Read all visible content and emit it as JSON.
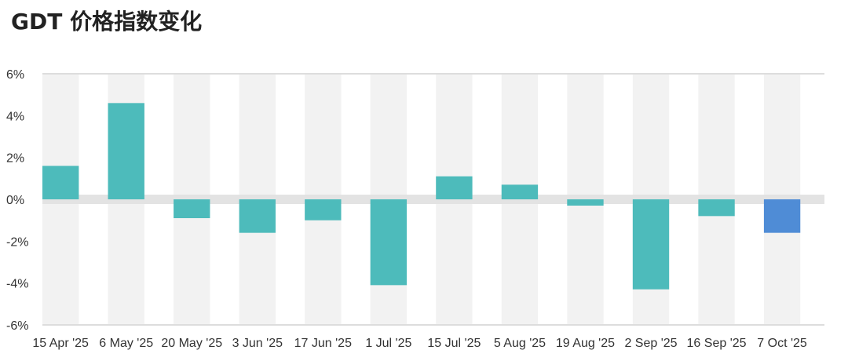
{
  "title": "GDT 价格指数变化",
  "chart_data": {
    "type": "bar",
    "title": "GDT 价格指数变化",
    "xlabel": "",
    "ylabel": "",
    "ylim": [
      -6,
      6
    ],
    "y_ticks": [
      6,
      4,
      2,
      0,
      -2,
      -4,
      -6
    ],
    "y_tick_labels": [
      "6%",
      "4%",
      "2%",
      "0%",
      "-2%",
      "-4%",
      "-6%"
    ],
    "categories": [
      "15 Apr '25",
      "6 May '25",
      "20 May '25",
      "3 Jun '25",
      "17 Jun '25",
      "1 Jul '25",
      "15 Jul '25",
      "5 Aug '25",
      "19 Aug '25",
      "2 Sep '25",
      "16 Sep '25",
      "7 Oct '25"
    ],
    "values": [
      1.6,
      4.6,
      -0.9,
      -1.6,
      -1.0,
      -4.1,
      1.1,
      0.7,
      -0.3,
      -4.3,
      -0.8,
      -1.6
    ],
    "grid": true,
    "colors": {
      "bar": "#4dbbbb",
      "highlight_bar": "#4f8cd6",
      "band": "#f2f2f2",
      "zero_band": "#e3e3e3",
      "axis": "#dddddd"
    },
    "highlight_index": 11
  }
}
